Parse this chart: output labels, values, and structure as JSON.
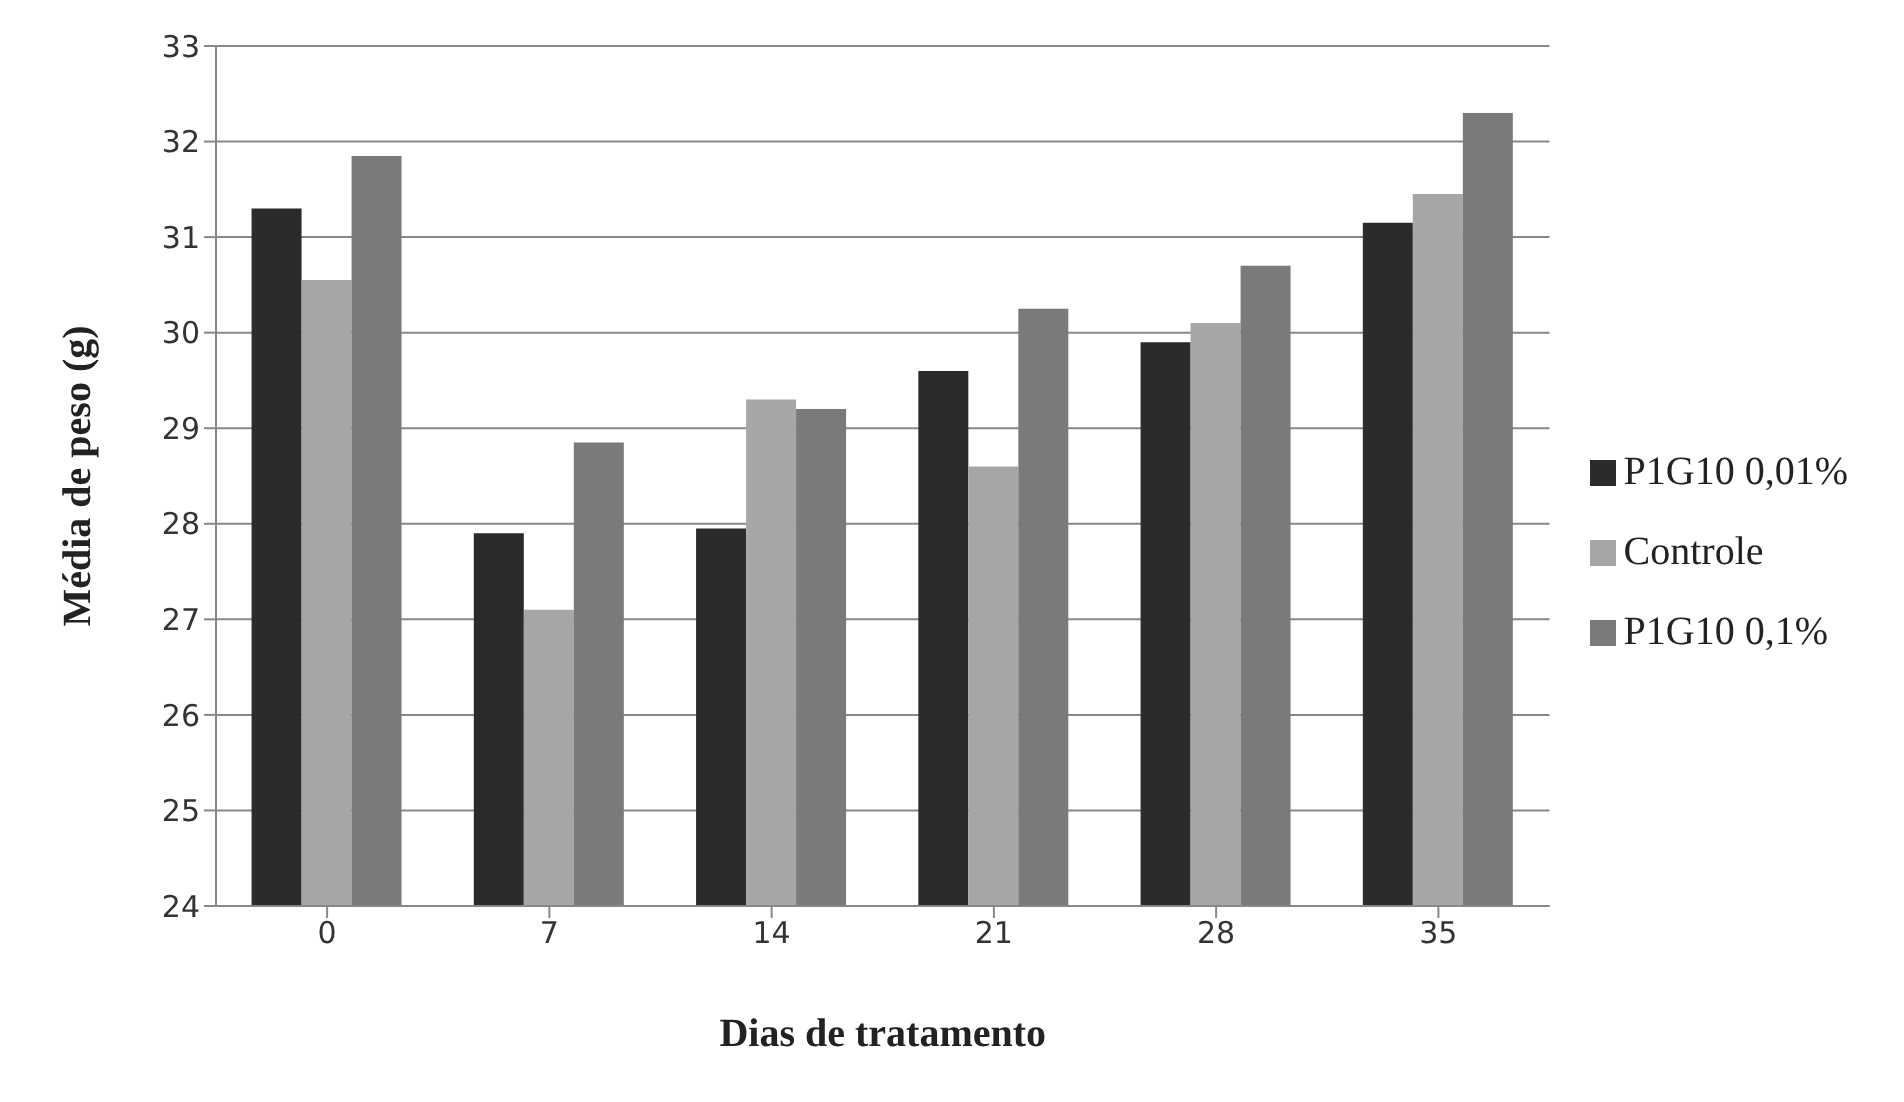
{
  "chart_data": {
    "type": "bar",
    "xlabel": "Dias de tratamento",
    "ylabel": "Média de peso (g)",
    "categories": [
      "0",
      "7",
      "14",
      "21",
      "28",
      "35"
    ],
    "series": [
      {
        "name": "P1G10 0,01%",
        "color": "#2b2b2b",
        "values": [
          31.3,
          27.9,
          27.95,
          29.6,
          29.9,
          31.15
        ]
      },
      {
        "name": "Controle",
        "color": "#a6a6a6",
        "values": [
          30.55,
          27.1,
          29.3,
          28.6,
          30.1,
          31.45
        ]
      },
      {
        "name": "P1G10 0,1%",
        "color": "#7a7a7a",
        "values": [
          31.85,
          28.85,
          29.2,
          30.25,
          30.7,
          32.3
        ]
      }
    ],
    "ylim": [
      24,
      33
    ],
    "yticks": [
      24,
      25,
      26,
      27,
      28,
      29,
      30,
      31,
      32,
      33
    ],
    "grid": "y",
    "legend": "right"
  }
}
